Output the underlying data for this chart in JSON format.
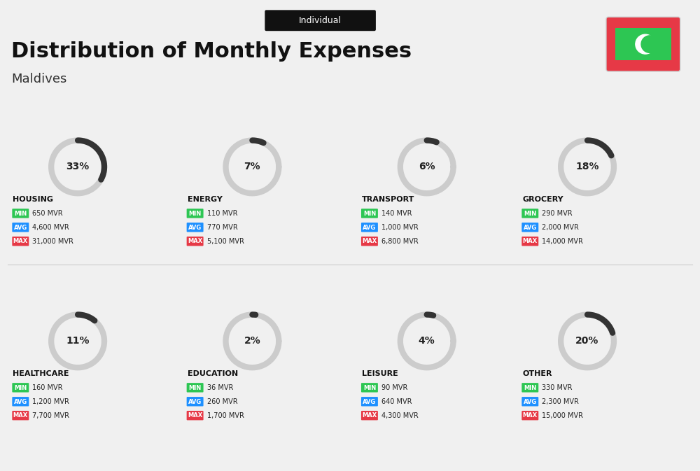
{
  "title_tag": "Individual",
  "title": "Distribution of Monthly Expenses",
  "subtitle": "Maldives",
  "bg_color": "#f0f0f0",
  "categories": [
    {
      "name": "HOUSING",
      "pct": 33,
      "min_val": "650 MVR",
      "avg_val": "4,600 MVR",
      "max_val": "31,000 MVR",
      "row": 0,
      "col": 0
    },
    {
      "name": "ENERGY",
      "pct": 7,
      "min_val": "110 MVR",
      "avg_val": "770 MVR",
      "max_val": "5,100 MVR",
      "row": 0,
      "col": 1
    },
    {
      "name": "TRANSPORT",
      "pct": 6,
      "min_val": "140 MVR",
      "avg_val": "1,000 MVR",
      "max_val": "6,800 MVR",
      "row": 0,
      "col": 2
    },
    {
      "name": "GROCERY",
      "pct": 18,
      "min_val": "290 MVR",
      "avg_val": "2,000 MVR",
      "max_val": "14,000 MVR",
      "row": 0,
      "col": 3
    },
    {
      "name": "HEALTHCARE",
      "pct": 11,
      "min_val": "160 MVR",
      "avg_val": "1,200 MVR",
      "max_val": "7,700 MVR",
      "row": 1,
      "col": 0
    },
    {
      "name": "EDUCATION",
      "pct": 2,
      "min_val": "36 MVR",
      "avg_val": "260 MVR",
      "max_val": "1,700 MVR",
      "row": 1,
      "col": 1
    },
    {
      "name": "LEISURE",
      "pct": 4,
      "min_val": "90 MVR",
      "avg_val": "640 MVR",
      "max_val": "4,300 MVR",
      "row": 1,
      "col": 2
    },
    {
      "name": "OTHER",
      "pct": 20,
      "min_val": "330 MVR",
      "avg_val": "2,300 MVR",
      "max_val": "15,000 MVR",
      "row": 1,
      "col": 3
    }
  ],
  "min_color": "#2dc653",
  "avg_color": "#1e90ff",
  "max_color": "#e63946",
  "arc_color": "#333333",
  "arc_bg_color": "#cccccc",
  "flag_bg": "#e63946",
  "flag_white": "#ffffff"
}
